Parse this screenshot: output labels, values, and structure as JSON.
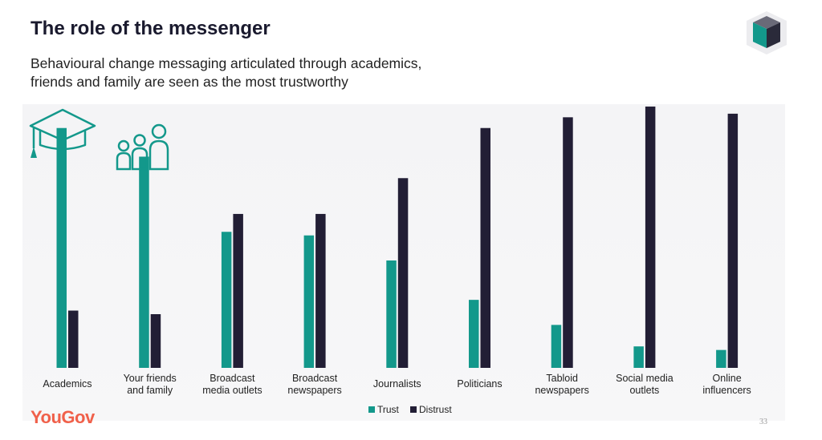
{
  "slide": {
    "title": "The role of the messenger",
    "subtitle_line1": "Behavioural change messaging articulated through academics,",
    "subtitle_line2": "friends and family are seen as the most trustworthy",
    "brand": "YouGov",
    "page_number": "33"
  },
  "colors": {
    "trust": "#13988b",
    "distrust": "#221e35",
    "brand": "#f0604a",
    "icon": "#13988b"
  },
  "icons": [
    "graduation-cap-icon",
    "family-icon",
    "cube-logo-icon"
  ],
  "chart_data": {
    "type": "bar",
    "categories": [
      [
        "Academics"
      ],
      [
        "Your friends",
        "and family"
      ],
      [
        "Broadcast",
        "media outlets"
      ],
      [
        "Broadcast",
        "newspapers"
      ],
      [
        "Journalists"
      ],
      [
        "Politicians"
      ],
      [
        "Tabloid",
        "newspapers"
      ],
      [
        "Social media",
        "outlets"
      ],
      [
        "Online",
        "influencers"
      ]
    ],
    "series": [
      {
        "name": "Trust",
        "values": [
          67,
          59,
          38,
          37,
          30,
          19,
          12,
          6,
          5
        ]
      },
      {
        "name": "Distrust",
        "values": [
          16,
          15,
          43,
          43,
          53,
          67,
          70,
          73,
          71
        ]
      }
    ],
    "ylim": [
      0,
      75
    ],
    "grid": false,
    "legend_position": "bottom-center"
  }
}
